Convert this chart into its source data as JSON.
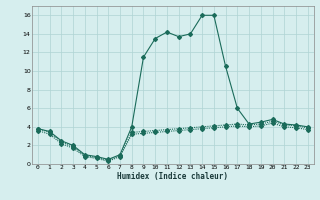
{
  "xlabel": "Humidex (Indice chaleur)",
  "background_color": "#d6eeee",
  "grid_color": "#afd4d4",
  "line_color": "#1a6b5a",
  "xlim": [
    -0.5,
    23.5
  ],
  "ylim": [
    0,
    17
  ],
  "xticks": [
    0,
    1,
    2,
    3,
    4,
    5,
    6,
    7,
    8,
    9,
    10,
    11,
    12,
    13,
    14,
    15,
    16,
    17,
    18,
    19,
    20,
    21,
    22,
    23
  ],
  "yticks": [
    0,
    2,
    4,
    6,
    8,
    10,
    12,
    14,
    16
  ],
  "line1_x": [
    0,
    1,
    2,
    3,
    4,
    5,
    6,
    7,
    8,
    9,
    10,
    11,
    12,
    13,
    14,
    15,
    16,
    17,
    18,
    19,
    20,
    21,
    22,
    23
  ],
  "line1_y": [
    3.8,
    3.5,
    2.5,
    2.0,
    1.0,
    0.8,
    0.5,
    1.0,
    4.0,
    11.5,
    13.5,
    14.2,
    13.7,
    14.0,
    16.0,
    16.0,
    10.5,
    6.0,
    4.3,
    4.5,
    4.8,
    4.3,
    4.2,
    4.0
  ],
  "line2_x": [
    0,
    1,
    2,
    3,
    4,
    5,
    6,
    7,
    8,
    9,
    10,
    11,
    12,
    13,
    14,
    15,
    16,
    17,
    18,
    19,
    20,
    21,
    22,
    23
  ],
  "line2_y": [
    3.8,
    3.4,
    2.4,
    1.9,
    0.9,
    0.7,
    0.4,
    0.9,
    3.4,
    3.5,
    3.6,
    3.7,
    3.8,
    3.9,
    4.0,
    4.1,
    4.2,
    4.3,
    4.2,
    4.3,
    4.6,
    4.2,
    4.1,
    3.9
  ],
  "line3_x": [
    0,
    1,
    2,
    3,
    4,
    5,
    6,
    7,
    8,
    9,
    10,
    11,
    12,
    13,
    14,
    15,
    16,
    17,
    18,
    19,
    20,
    21,
    22,
    23
  ],
  "line3_y": [
    3.6,
    3.2,
    2.2,
    1.7,
    0.8,
    0.6,
    0.3,
    0.8,
    3.2,
    3.3,
    3.4,
    3.5,
    3.6,
    3.7,
    3.8,
    3.9,
    4.0,
    4.1,
    4.0,
    4.1,
    4.4,
    4.0,
    3.9,
    3.7
  ],
  "markersize": 2.0,
  "linewidth": 0.8
}
